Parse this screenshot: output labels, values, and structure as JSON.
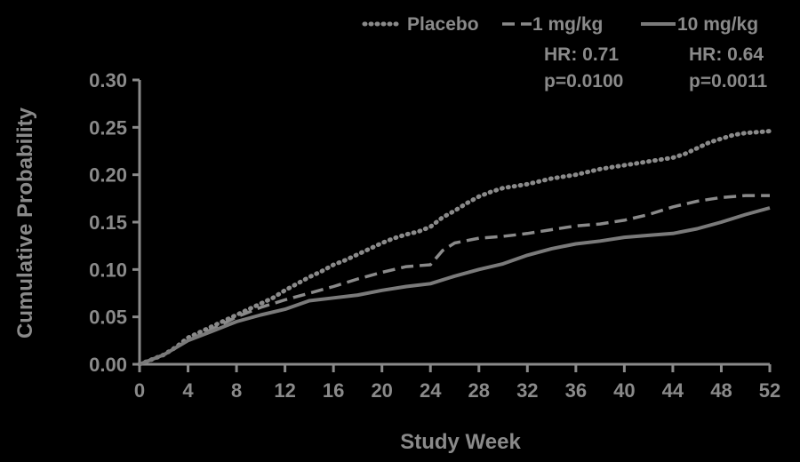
{
  "chart_data": {
    "type": "line",
    "xlabel": "Study Week",
    "ylabel": "Cumulative Probability",
    "xlim": [
      0,
      52
    ],
    "ylim": [
      0,
      0.3
    ],
    "xticks": [
      "0",
      "4",
      "8",
      "12",
      "16",
      "20",
      "24",
      "28",
      "32",
      "36",
      "40",
      "44",
      "48",
      "52"
    ],
    "yticks": [
      "0.00",
      "0.05",
      "0.10",
      "0.15",
      "0.20",
      "0.25",
      "0.30"
    ],
    "grid": false,
    "legend_position": "top-right",
    "series": [
      {
        "name": "Placebo",
        "style": "dotted",
        "x": [
          0,
          1,
          2,
          3,
          4,
          5,
          6,
          7,
          8,
          9,
          10,
          11,
          12,
          13,
          14,
          15,
          16,
          17,
          18,
          19,
          20,
          21,
          22,
          23,
          24,
          25,
          26,
          27,
          28,
          29,
          30,
          31,
          32,
          33,
          34,
          35,
          36,
          37,
          38,
          39,
          40,
          41,
          42,
          43,
          44,
          45,
          46,
          47,
          48,
          49,
          50,
          51,
          52
        ],
        "values": [
          0,
          0.005,
          0.01,
          0.018,
          0.028,
          0.034,
          0.04,
          0.046,
          0.052,
          0.058,
          0.064,
          0.07,
          0.078,
          0.085,
          0.092,
          0.098,
          0.105,
          0.11,
          0.116,
          0.122,
          0.128,
          0.133,
          0.137,
          0.14,
          0.145,
          0.155,
          0.162,
          0.17,
          0.177,
          0.182,
          0.186,
          0.188,
          0.19,
          0.193,
          0.196,
          0.198,
          0.2,
          0.203,
          0.206,
          0.208,
          0.21,
          0.212,
          0.214,
          0.216,
          0.218,
          0.222,
          0.228,
          0.234,
          0.238,
          0.242,
          0.244,
          0.245,
          0.246
        ]
      },
      {
        "name": "1 mg/kg",
        "style": "dashed",
        "hr": "HR: 0.71",
        "p": "p=0.0100",
        "x": [
          0,
          2,
          4,
          6,
          8,
          10,
          12,
          14,
          16,
          18,
          20,
          22,
          24,
          25,
          26,
          28,
          30,
          32,
          34,
          36,
          38,
          40,
          42,
          44,
          46,
          48,
          50,
          52
        ],
        "values": [
          0,
          0.01,
          0.025,
          0.037,
          0.05,
          0.06,
          0.068,
          0.075,
          0.082,
          0.09,
          0.097,
          0.103,
          0.105,
          0.12,
          0.128,
          0.133,
          0.135,
          0.138,
          0.142,
          0.146,
          0.148,
          0.152,
          0.158,
          0.166,
          0.172,
          0.176,
          0.178,
          0.178
        ]
      },
      {
        "name": "10 mg/kg",
        "style": "solid",
        "hr": "HR: 0.64",
        "p": "p=0.0011",
        "x": [
          0,
          2,
          4,
          6,
          8,
          10,
          12,
          14,
          16,
          18,
          20,
          22,
          24,
          26,
          28,
          30,
          32,
          34,
          36,
          38,
          40,
          42,
          44,
          46,
          48,
          50,
          52
        ],
        "values": [
          0,
          0.01,
          0.025,
          0.035,
          0.045,
          0.052,
          0.058,
          0.067,
          0.07,
          0.073,
          0.078,
          0.082,
          0.085,
          0.093,
          0.1,
          0.106,
          0.115,
          0.122,
          0.127,
          0.13,
          0.134,
          0.136,
          0.138,
          0.143,
          0.15,
          0.158,
          0.165
        ]
      }
    ]
  },
  "colors": {
    "background": "#000000",
    "axis": "#8a8a8a",
    "text": "#8a8a8a",
    "placebo": "#8a8a8a",
    "dose_1mg": "#8a8a8a",
    "dose_10mg": "#7a7a7a"
  }
}
